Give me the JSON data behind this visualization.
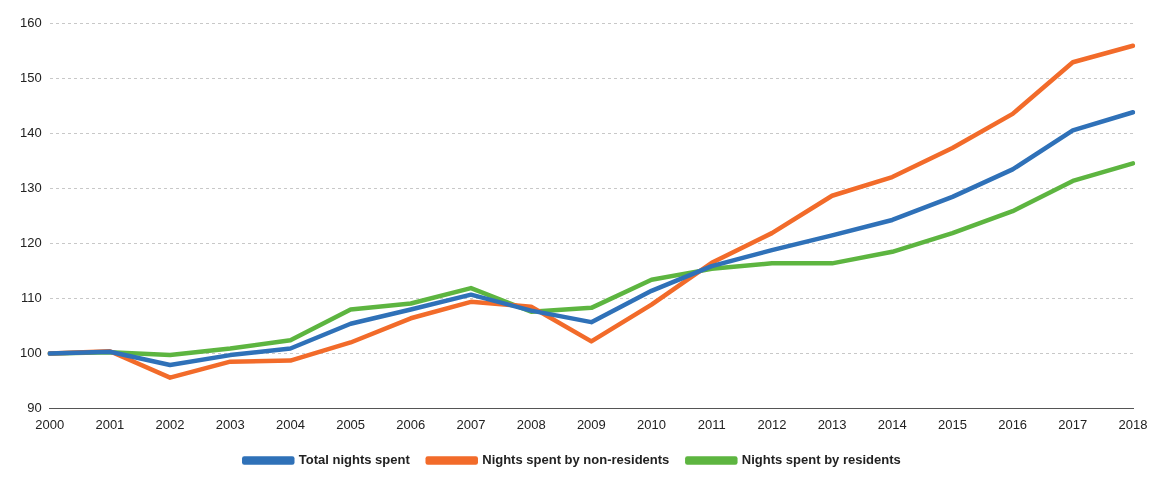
{
  "chart_data": {
    "type": "line",
    "categories": [
      "2000",
      "2001",
      "2002",
      "2003",
      "2004",
      "2005",
      "2006",
      "2007",
      "2008",
      "2009",
      "2010",
      "2011",
      "2012",
      "2013",
      "2014",
      "2015",
      "2016",
      "2017",
      "2018"
    ],
    "series": [
      {
        "name": "Total nights spent",
        "color": "#2f71b8",
        "values": [
          100,
          100.3,
          97.9,
          99.7,
          100.9,
          105.4,
          108,
          110.7,
          107.8,
          105.7,
          111.4,
          115.9,
          118.8,
          121.5,
          124.3,
          128.5,
          133.5,
          140.6,
          143.9
        ]
      },
      {
        "name": "Nights spent by non-residents",
        "color": "#f26b2a",
        "values": [
          100,
          100.4,
          95.6,
          98.5,
          98.7,
          102,
          106.4,
          109.4,
          108.5,
          102.2,
          108.9,
          116.5,
          121.9,
          128.7,
          132.1,
          137.4,
          143.6,
          153,
          156
        ]
      },
      {
        "name": "Nights spent by residents",
        "color": "#5db540",
        "values": [
          100,
          100.2,
          99.7,
          100.9,
          102.4,
          108,
          109.1,
          111.9,
          107.6,
          108.3,
          113.4,
          115.4,
          116.4,
          116.4,
          118.5,
          121.9,
          125.9,
          131.4,
          134.6
        ]
      }
    ],
    "ylim": [
      90,
      160
    ],
    "yticks": [
      90,
      100,
      110,
      120,
      130,
      140,
      150,
      160
    ],
    "grid": "y",
    "legend": "bottom",
    "marker": "none",
    "line_style": "solid"
  }
}
